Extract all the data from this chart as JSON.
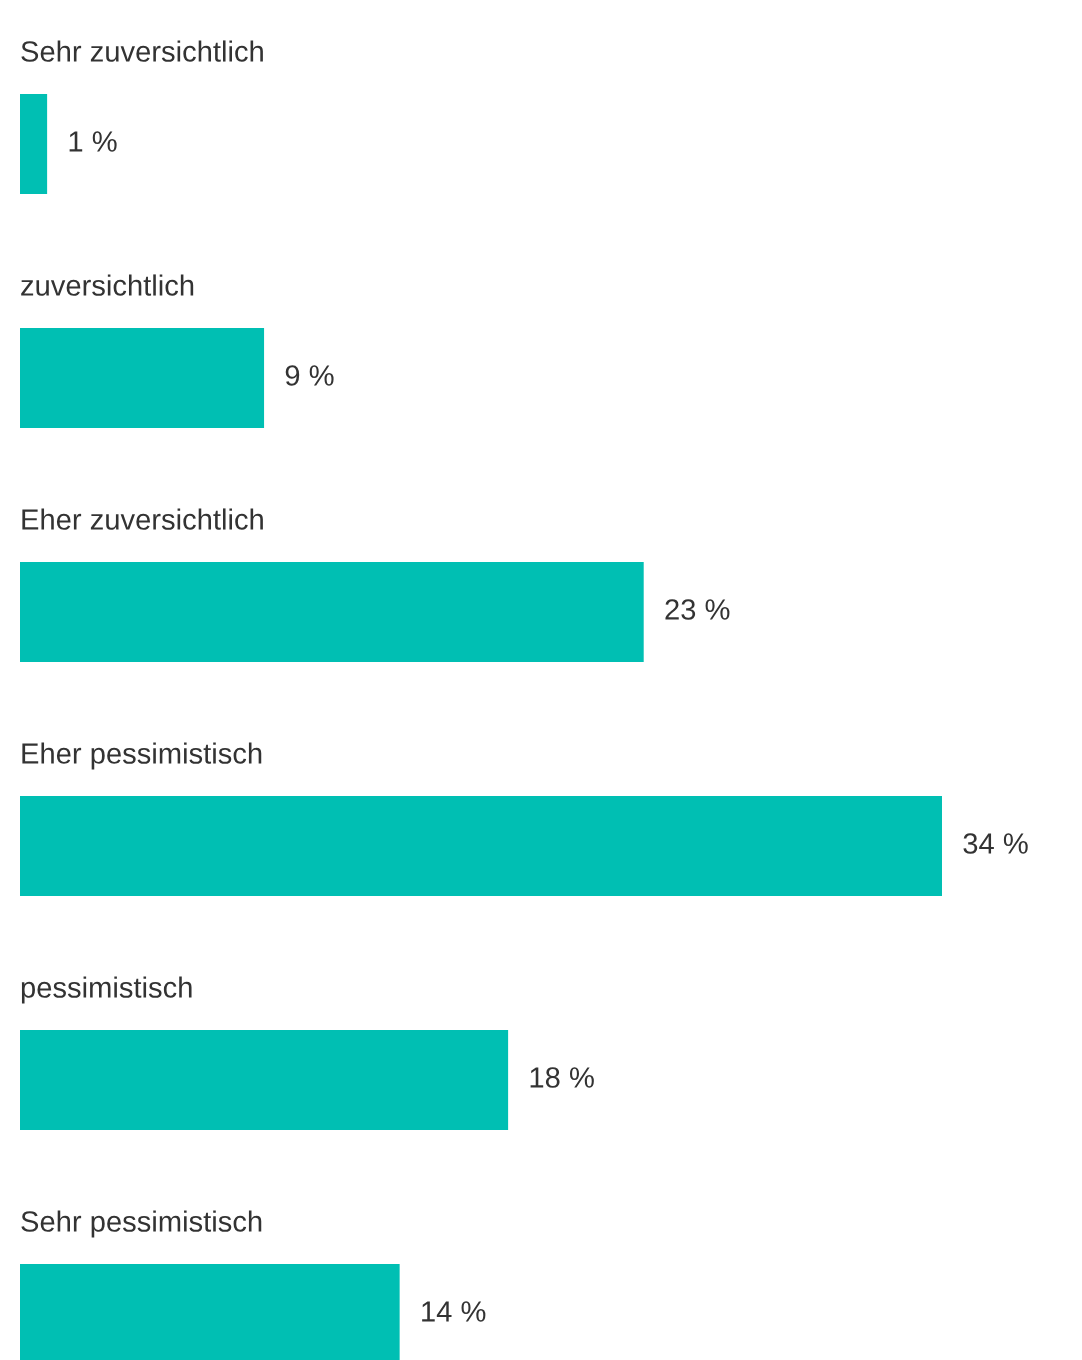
{
  "chart_data": {
    "type": "bar",
    "orientation": "horizontal",
    "categories": [
      "Sehr zuversichtlich",
      "zuversichtlich",
      "Eher zuversichtlich",
      "Eher pessimistisch",
      "pessimistisch",
      "Sehr pessimistisch"
    ],
    "values": [
      1,
      9,
      23,
      34,
      18,
      14
    ],
    "value_labels": [
      "1 %",
      "9 %",
      "23 %",
      "34 %",
      "18 %",
      "14 %"
    ],
    "color": "#00bfb3"
  }
}
